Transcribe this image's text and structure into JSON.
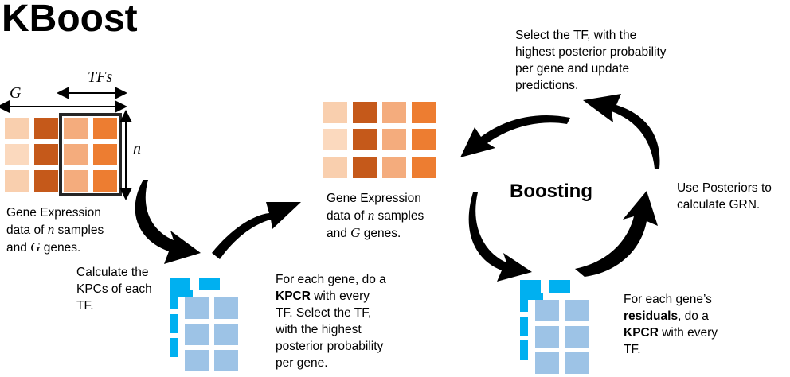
{
  "title": "KBoost",
  "center_label": "Boosting",
  "axis_labels": {
    "genes": "G",
    "tfs": "TFs",
    "samples": "n"
  },
  "texts": {
    "gene_expr_left": {
      "l1": "Gene Expression",
      "l2a": "data of ",
      "l2var": "n",
      "l2b": " samples",
      "l3a": "and ",
      "l3var": "G",
      "l3b": " genes."
    },
    "gene_expr_center": {
      "l1": "Gene Expression",
      "l2a": "data of ",
      "l2var": "n",
      "l2b": " samples",
      "l3a": "and ",
      "l3var": "G",
      "l3b": " genes."
    },
    "calc_kpcs": [
      "Calculate the",
      "KPCs of each",
      "TF."
    ],
    "kpcr_first": {
      "l1": "For each gene, do a",
      "l2bold": "KPCR",
      "l2rest": " with every",
      "l3": "TF. Select the TF,",
      "l4": "with the highest",
      "l5": "posterior probability",
      "l6": "per gene."
    },
    "select_tf": [
      "Select the TF, with the",
      "highest posterior probability",
      "per gene and update",
      "predictions."
    ],
    "use_posteriors": [
      "Use Posteriors to",
      "calculate GRN."
    ],
    "residuals": {
      "l1": "For each gene’s",
      "l2bold": "residuals",
      "l2rest": ", do a",
      "l3bold": "KPCR",
      "l3rest": " with every",
      "l4": "TF."
    }
  },
  "colors": {
    "light_peach": "#f9cfae",
    "dark_orange": "#c5591a",
    "mid_peach": "#f4ac7d",
    "bright_orange": "#ed7d31",
    "light_blue": "#9dc3e6",
    "bright_blue": "#00b0f0",
    "arrow": "#000000"
  }
}
